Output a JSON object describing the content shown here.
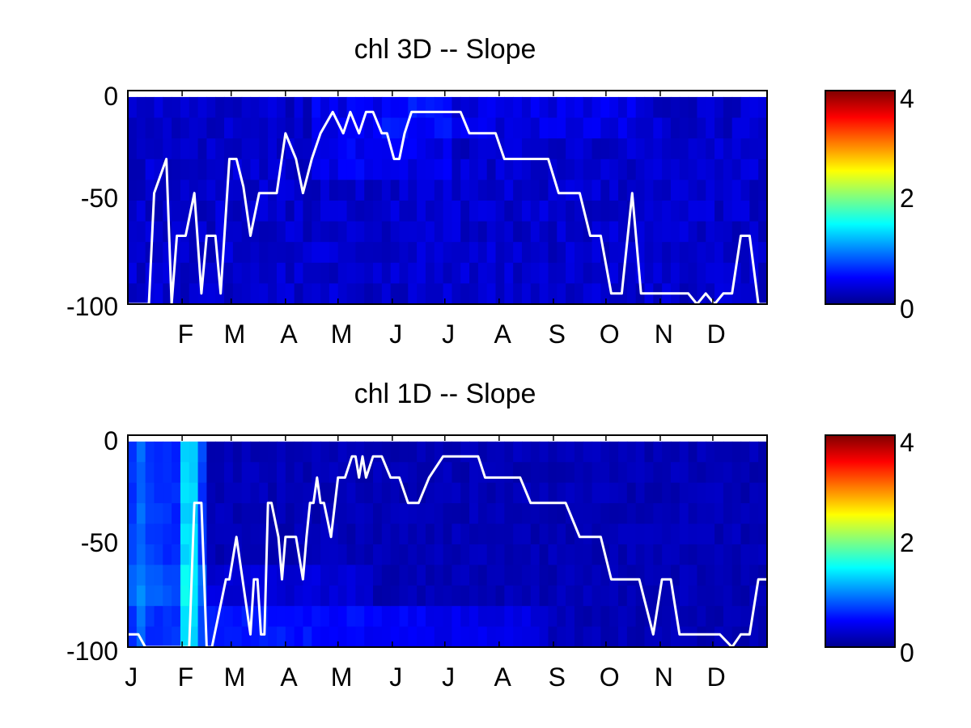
{
  "chart_data": [
    {
      "type": "heatmap",
      "title": "chl 3D   -- Slope",
      "xlabel": "",
      "ylabel": "",
      "ylim": [
        -100,
        0
      ],
      "y_ticks": [
        "0",
        "-50",
        "-100"
      ],
      "x_tick_labels": [
        "F",
        "M",
        "A",
        "M",
        "J",
        "J",
        "A",
        "S",
        "O",
        "N",
        "D"
      ],
      "colorbar": {
        "range": [
          0,
          4
        ],
        "ticks": [
          "0",
          "2",
          "4"
        ],
        "colormap": "jet"
      },
      "heat_description": "values mostly near 0.1-0.4 (dark blue) throughout",
      "line_color": "#ffffff",
      "line": {
        "x": [
          0,
          12,
          15,
          22,
          25,
          28,
          33,
          38,
          42,
          45,
          50,
          53,
          58,
          62,
          66,
          70,
          75,
          80,
          85,
          90,
          96,
          100,
          105,
          110,
          117,
          123,
          127,
          132,
          136,
          140,
          145,
          148,
          152,
          155,
          158,
          162,
          165,
          168,
          172,
          176,
          180,
          185,
          190,
          195,
          200,
          205,
          210,
          215,
          222,
          228,
          234,
          240,
          246,
          252,
          258,
          264,
          270,
          276,
          282,
          288,
          293,
          297,
          300,
          305,
          310,
          315,
          320,
          325,
          330,
          335,
          340,
          345,
          350,
          355,
          360,
          365
        ],
        "y": [
          -100,
          -100,
          -48,
          -32,
          -100,
          -68,
          -68,
          -48,
          -95,
          -68,
          -68,
          -95,
          -32,
          -32,
          -45,
          -68,
          -48,
          -48,
          -48,
          -20,
          -32,
          -48,
          -32,
          -20,
          -10,
          -20,
          -10,
          -20,
          -10,
          -10,
          -20,
          -20,
          -32,
          -32,
          -20,
          -10,
          -10,
          -10,
          -10,
          -10,
          -10,
          -10,
          -10,
          -20,
          -20,
          -20,
          -20,
          -32,
          -32,
          -32,
          -32,
          -32,
          -48,
          -48,
          -48,
          -68,
          -68,
          -95,
          -95,
          -48,
          -95,
          -95,
          -95,
          -95,
          -95,
          -95,
          -95,
          -100,
          -95,
          -100,
          -95,
          -95,
          -68,
          -68,
          -100,
          -100
        ]
      }
    },
    {
      "type": "heatmap",
      "title": "chl 1D   -- Slope",
      "xlabel": "",
      "ylabel": "",
      "ylim": [
        -100,
        0
      ],
      "y_ticks": [
        "0",
        "-50",
        "-100"
      ],
      "x_tick_labels": [
        "J",
        "F",
        "M",
        "A",
        "M",
        "J",
        "J",
        "A",
        "S",
        "O",
        "N",
        "D"
      ],
      "colorbar": {
        "range": [
          0,
          4
        ],
        "ticks": [
          "0",
          "2",
          "4"
        ],
        "colormap": "jet"
      },
      "heat_description": "slightly higher values near 0.6-1.0 in Jan-Feb and below -80 m in spring-summer",
      "line_color": "#ffffff",
      "line": {
        "x": [
          0,
          6,
          10,
          35,
          38,
          42,
          45,
          48,
          56,
          58,
          62,
          70,
          72,
          74,
          76,
          78,
          80,
          82,
          86,
          88,
          90,
          96,
          100,
          102,
          104,
          106,
          108,
          110,
          112,
          116,
          120,
          124,
          128,
          130,
          132,
          134,
          136,
          140,
          145,
          150,
          155,
          160,
          166,
          172,
          180,
          190,
          200,
          204,
          206,
          212,
          218,
          224,
          230,
          240,
          250,
          258,
          264,
          270,
          276,
          282,
          292,
          300,
          305,
          310,
          315,
          320,
          325,
          330,
          338,
          345,
          350,
          355,
          360,
          365
        ],
        "y": [
          -94,
          -94,
          -100,
          -100,
          -32,
          -32,
          -100,
          -100,
          -68,
          -68,
          -48,
          -94,
          -68,
          -68,
          -94,
          -94,
          -32,
          -32,
          -48,
          -68,
          -48,
          -48,
          -68,
          -48,
          -32,
          -32,
          -20,
          -32,
          -32,
          -48,
          -20,
          -20,
          -10,
          -10,
          -20,
          -10,
          -20,
          -10,
          -10,
          -20,
          -20,
          -32,
          -32,
          -20,
          -10,
          -10,
          -10,
          -20,
          -20,
          -20,
          -20,
          -20,
          -32,
          -32,
          -32,
          -48,
          -48,
          -48,
          -68,
          -68,
          -68,
          -94,
          -68,
          -68,
          -94,
          -94,
          -94,
          -94,
          -94,
          -100,
          -94,
          -94,
          -68,
          -68
        ]
      }
    }
  ]
}
